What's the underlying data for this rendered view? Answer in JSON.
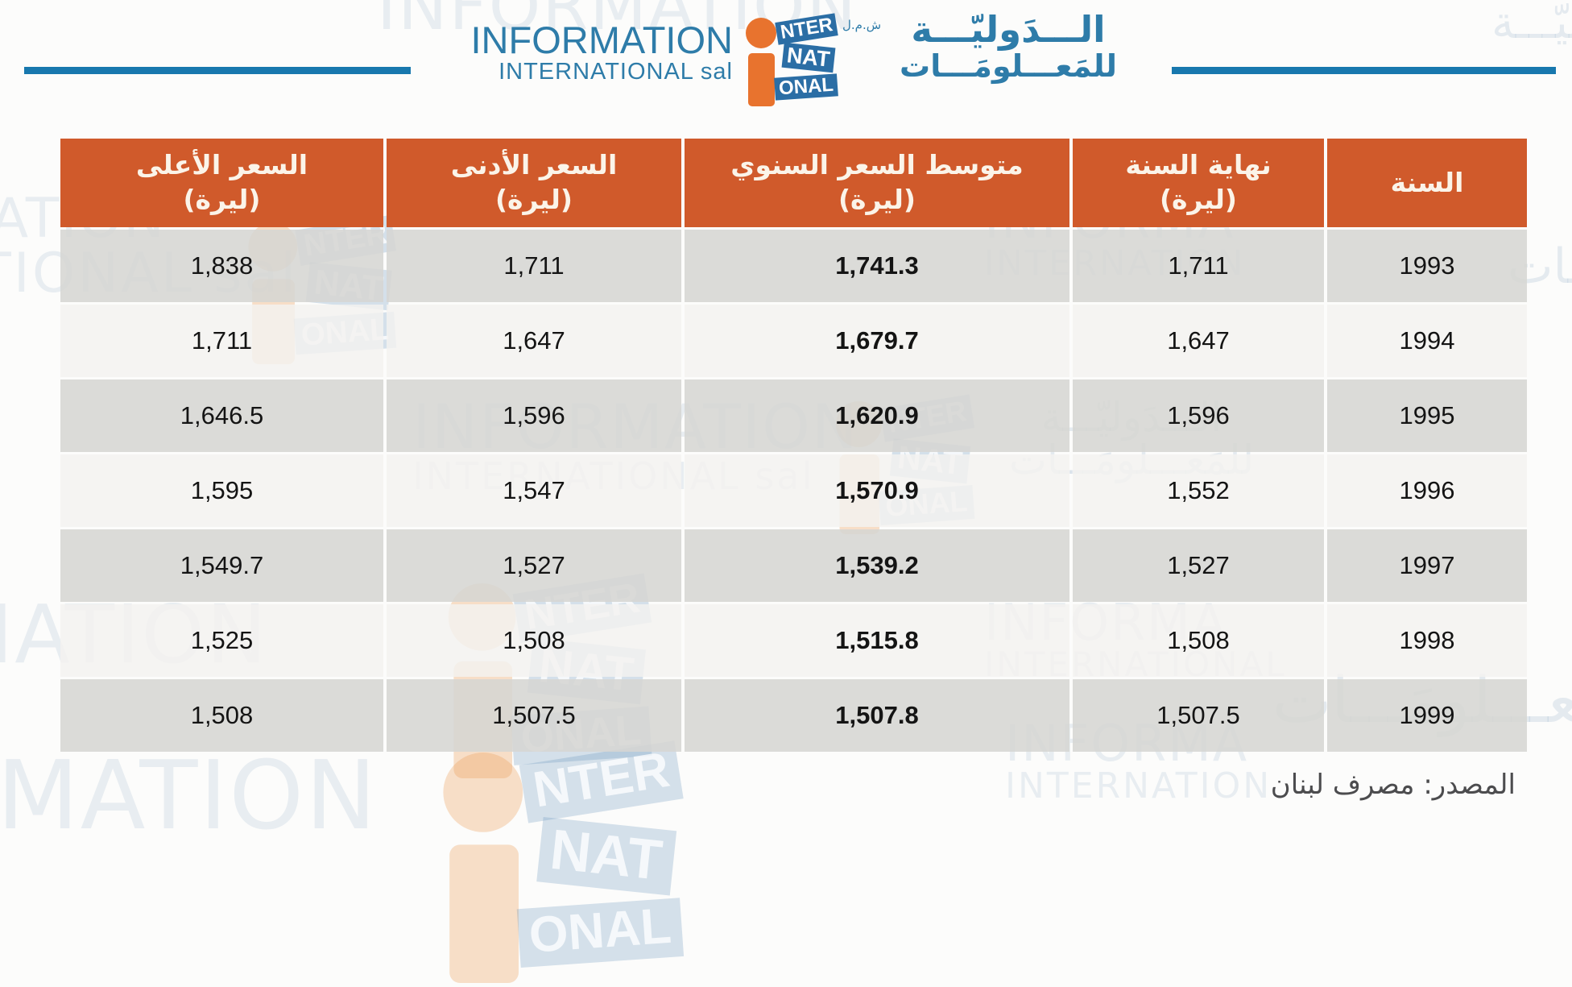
{
  "brand": {
    "name_line1": "INFORMATION",
    "name_line2": "INTERNATIONAL sal",
    "arabic_line1": "الـــدَوليّـــة",
    "arabic_line2": "للمَعـــلومَـــات",
    "legal_mark": "ش.م.ل",
    "mark_tiles": {
      "t1": "NTER",
      "t2": "NAT",
      "t3": "ONAL"
    },
    "colors": {
      "blue_text": "#2e7ca9",
      "rule_blue": "#1878ae",
      "orange": "#e8732e",
      "tile_blue": "#2b6ea5",
      "header_orange": "#d05a2b"
    }
  },
  "table": {
    "headers": [
      {
        "title": "السنة",
        "sub": ""
      },
      {
        "title": "نهاية السنة",
        "sub": "(ليرة)"
      },
      {
        "title": "متوسط السعر السنوي",
        "sub": "(ليرة)"
      },
      {
        "title": "السعر الأدنى",
        "sub": "(ليرة)"
      },
      {
        "title": "السعر الأعلى",
        "sub": "(ليرة)"
      }
    ],
    "rows": [
      {
        "year": "1993",
        "year_end": "1,711",
        "avg": "1,741.3",
        "min": "1,711",
        "max": "1,838"
      },
      {
        "year": "1994",
        "year_end": "1,647",
        "avg": "1,679.7",
        "min": "1,647",
        "max": "1,711"
      },
      {
        "year": "1995",
        "year_end": "1,596",
        "avg": "1,620.9",
        "min": "1,596",
        "max": "1,646.5"
      },
      {
        "year": "1996",
        "year_end": "1,552",
        "avg": "1,570.9",
        "min": "1,547",
        "max": "1,595"
      },
      {
        "year": "1997",
        "year_end": "1,527",
        "avg": "1,539.2",
        "min": "1,527",
        "max": "1,549.7"
      },
      {
        "year": "1998",
        "year_end": "1,508",
        "avg": "1,515.8",
        "min": "1,508",
        "max": "1,525"
      },
      {
        "year": "1999",
        "year_end": "1,507.5",
        "avg": "1,507.8",
        "min": "1,507.5",
        "max": "1,508"
      }
    ]
  },
  "source_note": "المصدر: مصرف لبنان",
  "watermarks": {
    "full1": "INFORMATION",
    "full2": "INTERNATIONAL sal",
    "frag_mation": "MATION",
    "frag_ational": "ATIONAL sal",
    "frag_rmation": "RMATION",
    "frag_informa": "INFORMA",
    "frag_internation": "INTERNATION",
    "frag_international": "INTERNATIONAL",
    "arabic1": "الـــدَوليّـــة",
    "arabic2": "للمَعـــلومَـــات"
  },
  "chart_data": {
    "type": "table",
    "title": "",
    "columns_rtl": [
      "السنة",
      "نهاية السنة (ليرة)",
      "متوسط السعر السنوي (ليرة)",
      "السعر الأدنى (ليرة)",
      "السعر الأعلى (ليرة)"
    ],
    "rows": [
      [
        1993,
        1711,
        1741.3,
        1711,
        1838
      ],
      [
        1994,
        1647,
        1679.7,
        1647,
        1711
      ],
      [
        1995,
        1596,
        1620.9,
        1596,
        1646.5
      ],
      [
        1996,
        1552,
        1570.9,
        1547,
        1595
      ],
      [
        1997,
        1527,
        1539.2,
        1527,
        1549.7
      ],
      [
        1998,
        1508,
        1515.8,
        1508,
        1525
      ],
      [
        1999,
        1507.5,
        1507.8,
        1507.5,
        1508
      ]
    ],
    "source": "المصدر: مصرف لبنان"
  }
}
